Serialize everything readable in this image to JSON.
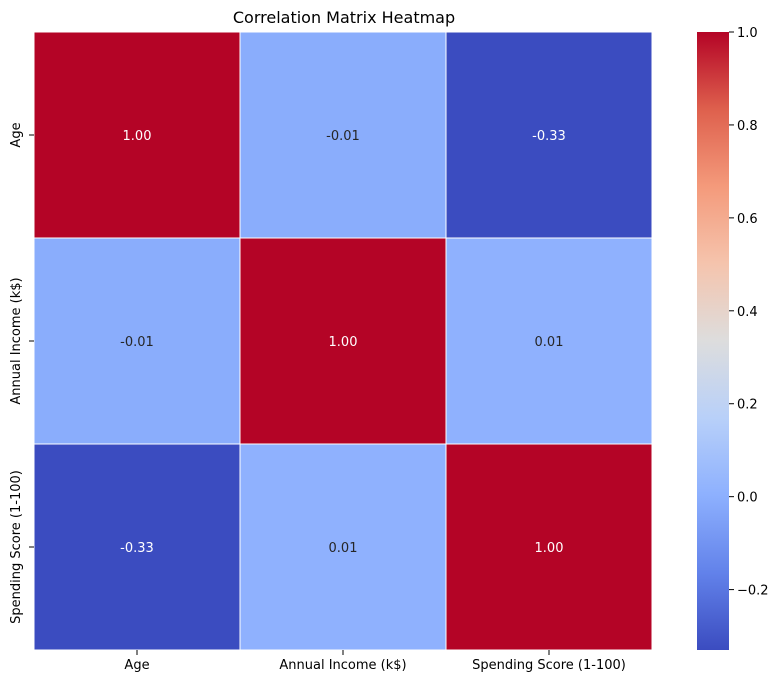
{
  "chart_data": {
    "type": "heatmap",
    "title": "Correlation Matrix Heatmap",
    "xlabel": "",
    "ylabel": "",
    "x_categories": [
      "Age",
      "Annual Income (k$)",
      "Spending Score (1-100)"
    ],
    "y_categories": [
      "Age",
      "Annual Income (k$)",
      "Spending Score (1-100)"
    ],
    "values": [
      [
        1.0,
        -0.01,
        -0.33
      ],
      [
        -0.01,
        1.0,
        0.01
      ],
      [
        -0.33,
        0.01,
        1.0
      ]
    ],
    "annotations": [
      [
        "1.00",
        "-0.01",
        "-0.33"
      ],
      [
        "-0.01",
        "1.00",
        "0.01"
      ],
      [
        "-0.33",
        "0.01",
        "1.00"
      ]
    ],
    "colormap": "coolwarm",
    "vmin": -0.33,
    "vmax": 1.0,
    "colorbar_ticks": [
      1.0,
      0.8,
      0.6,
      0.4,
      0.2,
      0.0,
      -0.2
    ],
    "colorbar_tick_labels": [
      "1.0",
      "0.8",
      "0.6",
      "0.4",
      "0.2",
      "0.0",
      "−0.2"
    ],
    "cell_border_color": "#ffffff"
  }
}
